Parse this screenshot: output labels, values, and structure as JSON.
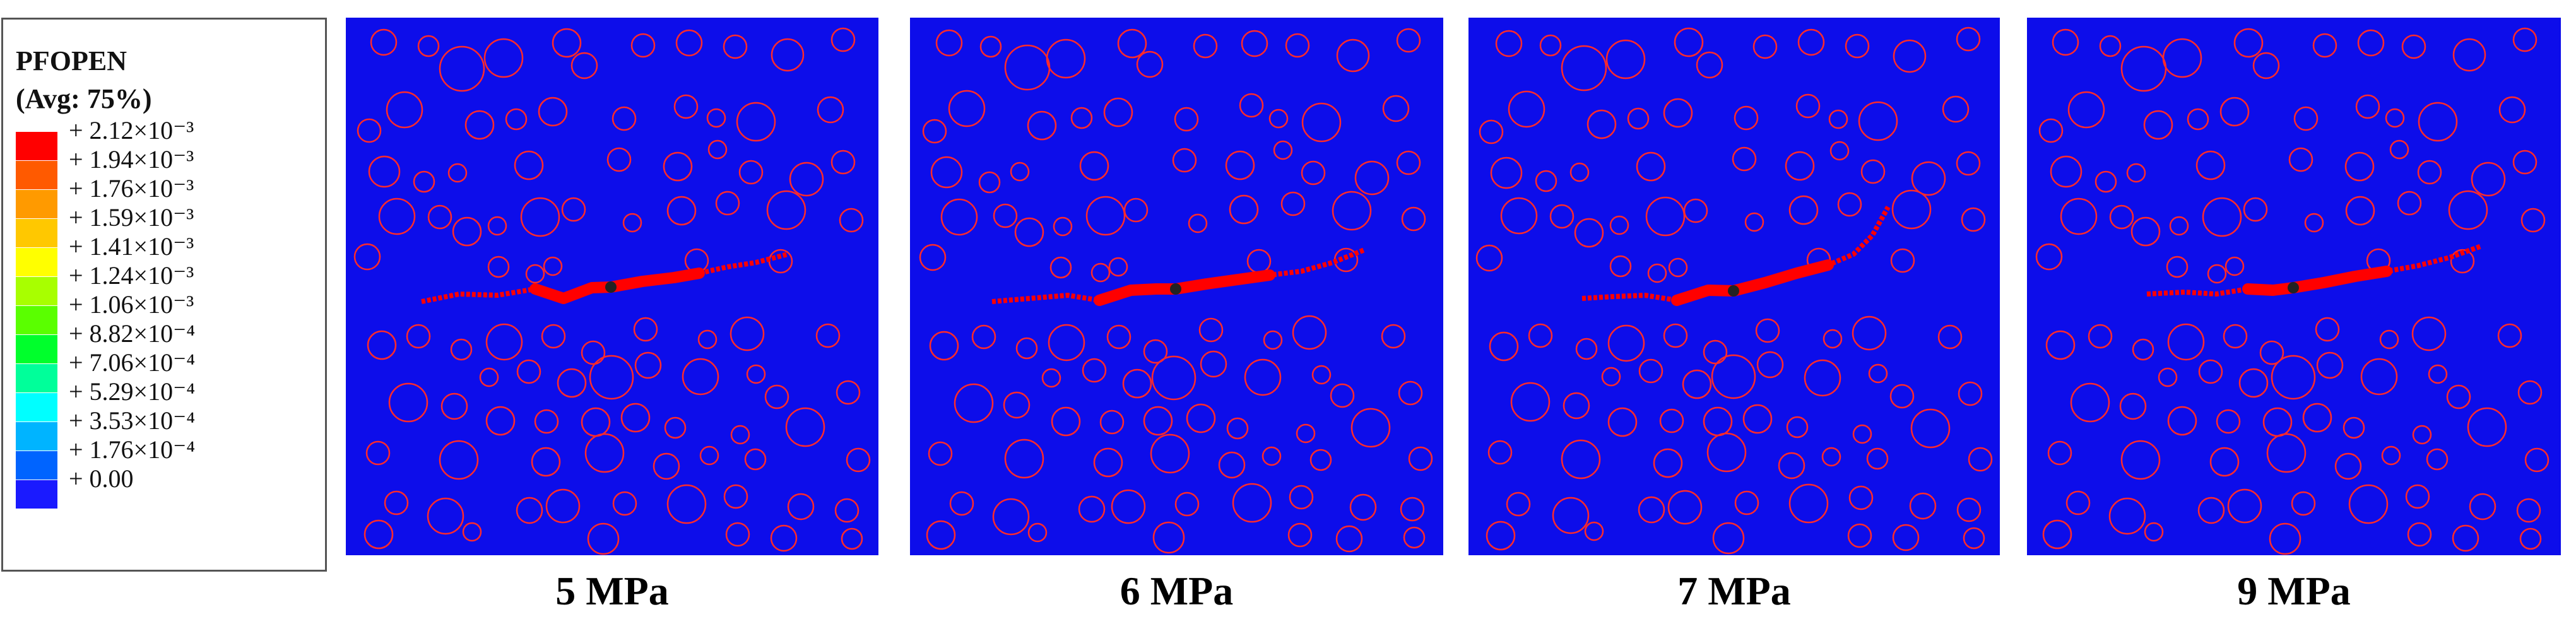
{
  "legend": {
    "variable": "PFOPEN",
    "averaging": "(Avg: 75%)",
    "levels": [
      {
        "label": "+ 2.12×10⁻³",
        "color": "#ff0000"
      },
      {
        "label": "+ 1.94×10⁻³",
        "color": "#ff5a00"
      },
      {
        "label": "+ 1.76×10⁻³",
        "color": "#ff9a00"
      },
      {
        "label": "+ 1.59×10⁻³",
        "color": "#ffc800"
      },
      {
        "label": "+ 1.41×10⁻³",
        "color": "#ffff00"
      },
      {
        "label": "+ 1.24×10⁻³",
        "color": "#a8ff00"
      },
      {
        "label": "+ 1.06×10⁻³",
        "color": "#5aff00"
      },
      {
        "label": "+ 8.82×10⁻⁴",
        "color": "#00ff2c"
      },
      {
        "label": "+ 7.06×10⁻⁴",
        "color": "#00ff9a"
      },
      {
        "label": "+ 5.29×10⁻⁴",
        "color": "#00ffff"
      },
      {
        "label": "+ 3.53×10⁻⁴",
        "color": "#00b4ff"
      },
      {
        "label": "+ 1.76×10⁻⁴",
        "color": "#0064ff"
      },
      {
        "label": "+ 0.00",
        "color": "#1a1aff"
      }
    ]
  },
  "panels": [
    {
      "caption": "5 MPa"
    },
    {
      "caption": "6 MPa"
    },
    {
      "caption": "7 MPa"
    },
    {
      "caption": "9 MPa"
    }
  ],
  "colors": {
    "background": "#0d0dea",
    "inclusion_outline": "#ff2a2a",
    "fracture": "#ff0000",
    "injection_point": "#222222"
  }
}
